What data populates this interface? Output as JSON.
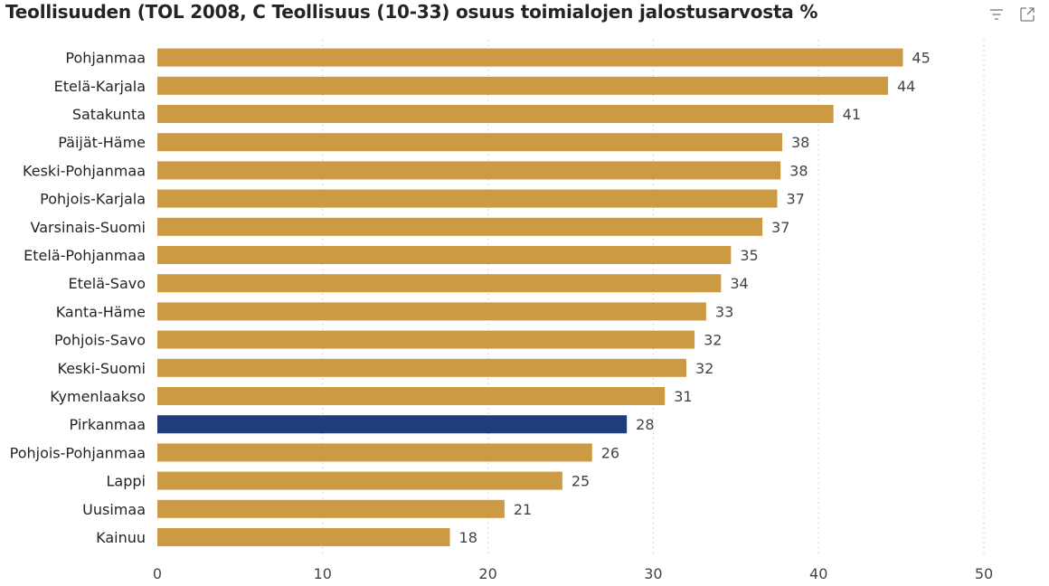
{
  "title": "Teollisuuden (TOL 2008, C Teollisuus (10-33) osuus toimialojen jalostusarvosta %",
  "toolbar": {
    "filter_icon": "filter-lines-icon",
    "expand_icon": "focus-mode-icon"
  },
  "colors": {
    "bar": "#CC9A43",
    "highlight": "#1F3D7A",
    "grid": "#C8C8C8"
  },
  "chart_data": {
    "type": "bar",
    "orientation": "horizontal",
    "title": "Teollisuuden (TOL 2008, C Teollisuus (10-33) osuus toimialojen jalostusarvosta %",
    "categories": [
      "Pohjanmaa",
      "Etelä-Karjala",
      "Satakunta",
      "Päijät-Häme",
      "Keski-Pohjanmaa",
      "Pohjois-Karjala",
      "Varsinais-Suomi",
      "Etelä-Pohjanmaa",
      "Etelä-Savo",
      "Kanta-Häme",
      "Pohjois-Savo",
      "Keski-Suomi",
      "Kymenlaakso",
      "Pirkanmaa",
      "Pohjois-Pohjanmaa",
      "Lappi",
      "Uusimaa",
      "Kainuu"
    ],
    "values": [
      45.1,
      44.2,
      40.9,
      37.8,
      37.7,
      37.5,
      36.6,
      34.7,
      34.1,
      33.2,
      32.5,
      32.0,
      30.7,
      28.4,
      26.3,
      24.5,
      21.0,
      17.7
    ],
    "value_labels": [
      "45",
      "44",
      "41",
      "38",
      "38",
      "37",
      "37",
      "35",
      "34",
      "33",
      "32",
      "32",
      "31",
      "28",
      "26",
      "25",
      "21",
      "18"
    ],
    "highlighted_category": "Pirkanmaa",
    "xlim": [
      0,
      50
    ],
    "xticks": [
      0,
      10,
      20,
      30,
      40,
      50
    ],
    "xtick_labels": [
      "0",
      "10",
      "20",
      "30",
      "40",
      "50"
    ],
    "xlabel": "",
    "ylabel": "",
    "grid": true
  }
}
